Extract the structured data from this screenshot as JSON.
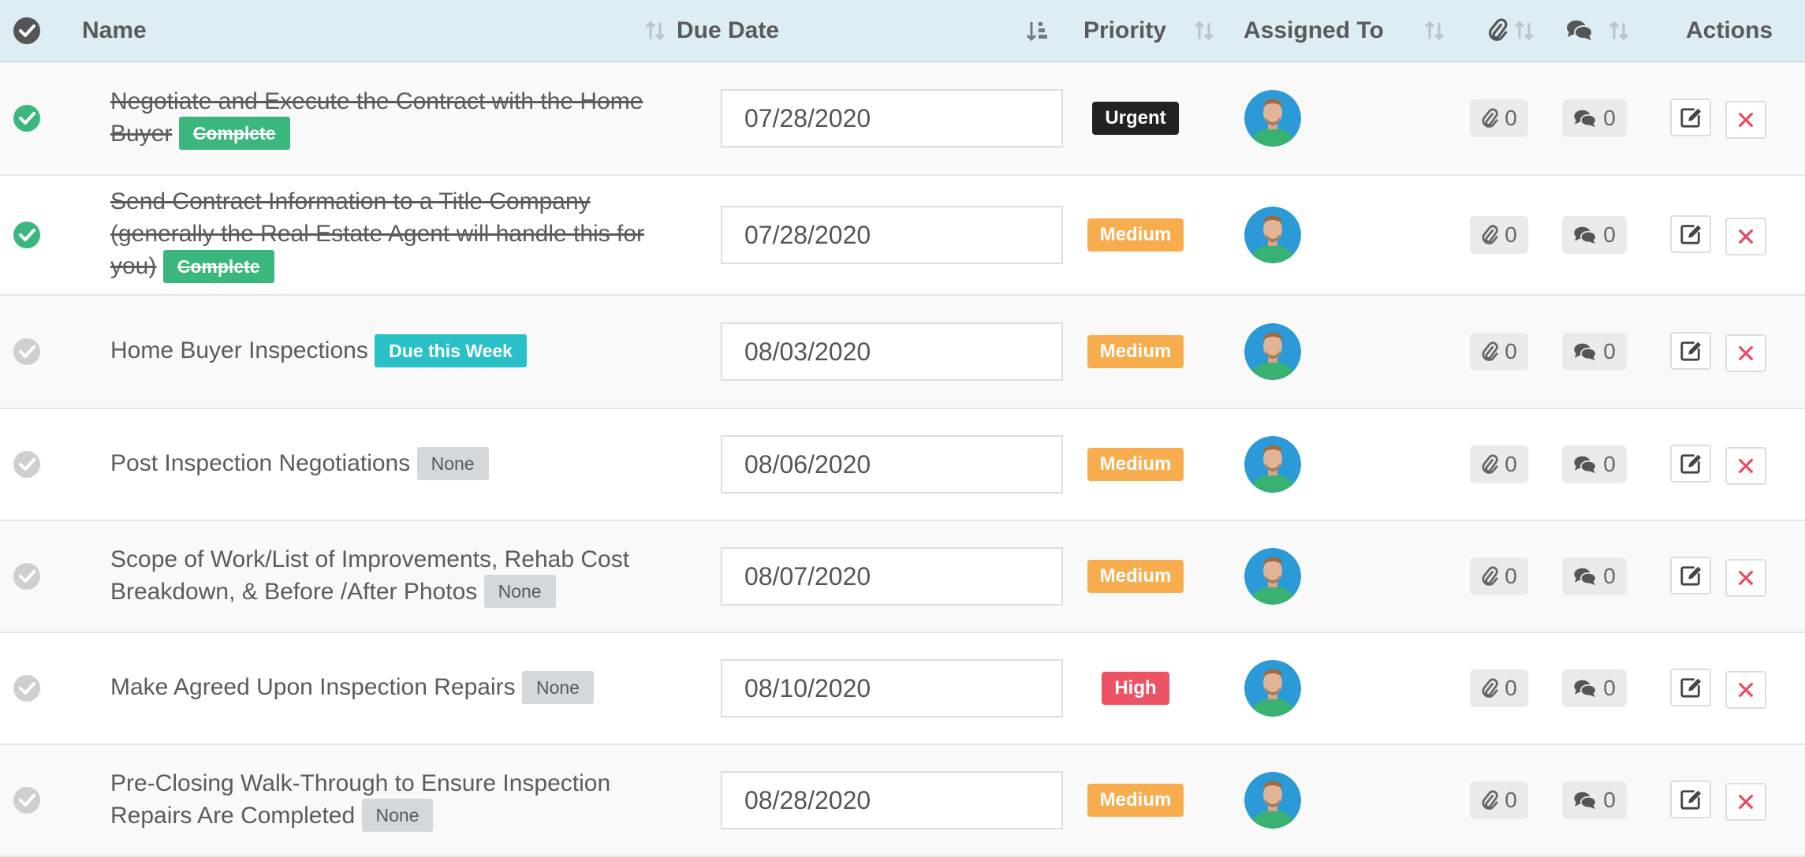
{
  "header": {
    "name": "Name",
    "due_date": "Due Date",
    "priority": "Priority",
    "assigned_to": "Assigned To",
    "actions": "Actions"
  },
  "colors": {
    "header_bg": "#ddedf4",
    "complete": "#3bb77e",
    "due_this_week": "#2ac0c8",
    "urgent": "#222222",
    "medium": "#f7ad4e",
    "high": "#ec5465"
  },
  "tasks": [
    {
      "text": "Negotiate and Execute the Contract with the Home Buyer",
      "badge": "Complete",
      "done": true,
      "date": "07/28/2020",
      "priority": "Urgent",
      "attachments": "0",
      "comments": "0"
    },
    {
      "text": "Send Contract Information to a Title Company (generally the Real Estate Agent will handle this for you)",
      "badge": "Complete",
      "done": true,
      "date": "07/28/2020",
      "priority": "Medium",
      "attachments": "0",
      "comments": "0"
    },
    {
      "text": "Home Buyer Inspections",
      "badge": "Due this Week",
      "done": false,
      "date": "08/03/2020",
      "priority": "Medium",
      "attachments": "0",
      "comments": "0"
    },
    {
      "text": "Post Inspection Negotiations",
      "badge": "None",
      "done": false,
      "date": "08/06/2020",
      "priority": "Medium",
      "attachments": "0",
      "comments": "0"
    },
    {
      "text": "Scope of Work/List of Improvements, Rehab Cost Breakdown, & Before /After Photos",
      "badge": "None",
      "done": false,
      "date": "08/07/2020",
      "priority": "Medium",
      "attachments": "0",
      "comments": "0"
    },
    {
      "text": "Make Agreed Upon Inspection Repairs",
      "badge": "None",
      "done": false,
      "date": "08/10/2020",
      "priority": "High",
      "attachments": "0",
      "comments": "0"
    },
    {
      "text": "Pre-Closing Walk-Through to Ensure Inspection Repairs Are Completed",
      "badge": "None",
      "done": false,
      "date": "08/28/2020",
      "priority": "Medium",
      "attachments": "0",
      "comments": "0"
    }
  ]
}
